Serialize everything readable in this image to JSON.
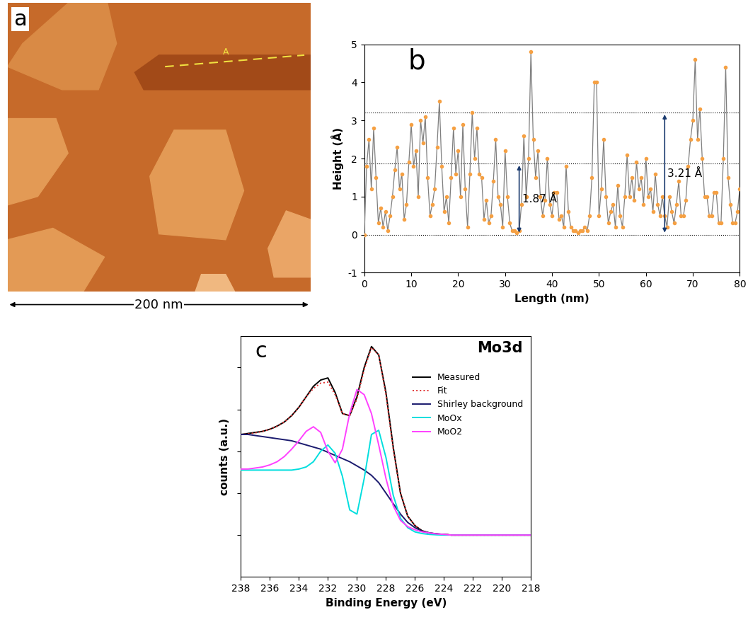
{
  "image": {
    "panel_label": "a",
    "scale_bar": "200 nm",
    "profile_label": "A"
  },
  "chart_data": [
    {
      "type": "line",
      "panel_label": "b",
      "x_label": "Length (nm)",
      "y_label": "Height (Å)",
      "x": [
        0,
        0.5,
        1,
        1.5,
        2,
        2.5,
        3,
        3.5,
        4,
        4.5,
        5,
        5.5,
        6,
        6.5,
        7,
        7.5,
        8,
        8.5,
        9,
        9.5,
        10,
        10.5,
        11,
        11.5,
        12,
        12.5,
        13,
        13.5,
        14,
        14.5,
        15,
        15.5,
        16,
        16.5,
        17,
        17.5,
        18,
        18.5,
        19,
        19.5,
        20,
        20.5,
        21,
        21.5,
        22,
        22.5,
        23,
        23.5,
        24,
        24.5,
        25,
        25.5,
        26,
        26.5,
        27,
        27.5,
        28,
        28.5,
        29,
        29.5,
        30,
        30.5,
        31,
        31.5,
        32,
        32.5,
        33,
        33.5,
        34,
        34.5,
        35,
        35.5,
        36,
        36.5,
        37,
        37.5,
        38,
        38.5,
        39,
        39.5,
        40,
        40.5,
        41,
        41.5,
        42,
        42.5,
        43,
        43.5,
        44,
        44.5,
        45,
        45.5,
        46,
        46.5,
        47,
        47.5,
        48,
        48.5,
        49,
        49.5,
        50,
        50.5,
        51,
        51.5,
        52,
        52.5,
        53,
        53.5,
        54,
        54.5,
        55,
        55.5,
        56,
        56.5,
        57,
        57.5,
        58,
        58.5,
        59,
        59.5,
        60,
        60.5,
        61,
        61.5,
        62,
        62.5,
        63,
        63.5,
        64,
        64.5,
        65,
        65.5,
        66,
        66.5,
        67,
        67.5,
        68,
        68.5,
        69,
        69.5,
        70,
        70.5,
        71,
        71.5,
        72,
        72.5,
        73,
        73.5,
        74,
        74.5,
        75,
        75.5,
        76,
        76.5,
        77,
        77.5,
        78,
        78.5,
        79,
        79.5,
        80
      ],
      "values": [
        0,
        1.8,
        2.5,
        1.2,
        2.8,
        1.5,
        0.3,
        0.7,
        0.2,
        0.6,
        0.1,
        0.5,
        1.0,
        1.7,
        2.3,
        1.2,
        1.6,
        0.4,
        0.8,
        1.9,
        2.9,
        1.8,
        2.2,
        1.0,
        3.0,
        2.4,
        3.1,
        1.5,
        0.5,
        0.8,
        1.2,
        2.3,
        3.5,
        1.8,
        0.6,
        1.0,
        0.3,
        1.5,
        2.8,
        1.6,
        2.2,
        1.0,
        2.9,
        1.2,
        0.2,
        1.6,
        3.2,
        2.0,
        2.8,
        1.6,
        1.5,
        0.4,
        0.9,
        0.3,
        0.5,
        1.4,
        2.5,
        1.0,
        0.8,
        0.2,
        2.2,
        1.0,
        0.3,
        0.1,
        0.1,
        0.05,
        0.1,
        0.8,
        2.6,
        1.0,
        2.0,
        4.8,
        2.5,
        1.5,
        2.2,
        1.0,
        0.5,
        0.9,
        2.0,
        0.8,
        0.5,
        1.1,
        1.1,
        0.4,
        0.5,
        0.2,
        1.8,
        0.6,
        0.2,
        0.1,
        0.1,
        0.05,
        0.1,
        0.1,
        0.2,
        0.1,
        0.5,
        1.5,
        4.0,
        4.0,
        0.5,
        1.2,
        2.5,
        1.0,
        0.3,
        0.6,
        0.8,
        0.2,
        1.3,
        0.5,
        0.2,
        1.0,
        2.1,
        1.0,
        1.5,
        0.9,
        1.9,
        1.2,
        1.5,
        0.8,
        2.0,
        1.0,
        1.2,
        0.6,
        1.6,
        0.8,
        0.5,
        1.0,
        0.5,
        0.2,
        1.0,
        0.6,
        0.3,
        0.8,
        1.4,
        0.5,
        0.5,
        0.9,
        1.8,
        2.5,
        3.0,
        4.6,
        2.5,
        3.3,
        2.0,
        1.0,
        1.0,
        0.5,
        0.5,
        1.1,
        1.1,
        0.3,
        0.3,
        2.0,
        4.4,
        1.5,
        0.8,
        0.3,
        0.3,
        0.6,
        1.2
      ],
      "color": "#f5a043",
      "marker": "o",
      "line_style": "solid",
      "xlim": [
        0,
        80
      ],
      "xticks": [
        0,
        10,
        20,
        30,
        40,
        50,
        60,
        70,
        80
      ],
      "ylim": [
        -1,
        5
      ],
      "yticks": [
        -1,
        0,
        1,
        2,
        3,
        4,
        5
      ],
      "reference_lines": [
        0,
        1.87,
        3.21
      ],
      "annotations": [
        {
          "text": "1.87 Å",
          "x": 33,
          "y_from": 0,
          "y_to": 1.87
        },
        {
          "text": "3.21 Å",
          "x": 64,
          "y_from": 0,
          "y_to": 3.21
        }
      ]
    },
    {
      "type": "line",
      "panel_label": "c",
      "title": "Mo3d",
      "x_label": "Binding Energy (eV)",
      "y_label": "counts (a.u.)",
      "x": [
        238,
        237.5,
        237,
        236.5,
        236,
        235.5,
        235,
        234.5,
        234,
        233.5,
        233,
        232.5,
        232,
        231.5,
        231,
        230.5,
        230,
        229.5,
        229,
        228.5,
        228,
        227.5,
        227,
        226.5,
        226,
        225.5,
        225,
        224.5,
        224,
        223.5,
        223,
        222.5,
        222,
        221.5,
        221,
        220.5,
        220,
        219.5,
        219,
        218.5,
        218
      ],
      "series": [
        {
          "name": "Measured",
          "color": "#000000",
          "line_style": "solid",
          "values": [
            68,
            68.5,
            69,
            69.5,
            70.5,
            72,
            74,
            77,
            81,
            86,
            91,
            94,
            95,
            88,
            78,
            77,
            86,
            100,
            110,
            106,
            88,
            62,
            40,
            29,
            24.5,
            22,
            21,
            20.5,
            20.3,
            20,
            20,
            20,
            20,
            20,
            20,
            20,
            20,
            20,
            20,
            20,
            20
          ]
        },
        {
          "name": "Fit",
          "color": "#e03030",
          "line_style": "dotted",
          "values": [
            68,
            68.3,
            68.8,
            69.5,
            70.5,
            72,
            74,
            77,
            81,
            86,
            90,
            92.5,
            93,
            87,
            78,
            77,
            85,
            99,
            109.5,
            106,
            87,
            61,
            40,
            29,
            24.5,
            22,
            21,
            20.5,
            20.3,
            20,
            20,
            20,
            20,
            20,
            20,
            20,
            20,
            20,
            20,
            20,
            20
          ]
        },
        {
          "name": "Shirley background",
          "color": "#1a1a6e",
          "line_style": "solid",
          "values": [
            68,
            68,
            67.5,
            67,
            66.5,
            66,
            65.5,
            65,
            64,
            63,
            62,
            61,
            59.5,
            58,
            56.5,
            55,
            53,
            51,
            48.5,
            45,
            40,
            35,
            30,
            26,
            23.5,
            21.8,
            21,
            20.6,
            20.3,
            20,
            20,
            20,
            20,
            20,
            20,
            20,
            20,
            20,
            20,
            20,
            20
          ]
        },
        {
          "name": "MoOx",
          "color": "#00dede",
          "line_style": "solid",
          "values": [
            51,
            51,
            51,
            51,
            51,
            51,
            51,
            51,
            51.5,
            52.5,
            55,
            60,
            63,
            59,
            48,
            32,
            30,
            47,
            68,
            70,
            57,
            39,
            28,
            23.5,
            21.5,
            20.7,
            20.3,
            20.1,
            20,
            20,
            20,
            20,
            20,
            20,
            20,
            20,
            20,
            20,
            20,
            20,
            20
          ]
        },
        {
          "name": "MoO2",
          "color": "#ff40ff",
          "line_style": "solid",
          "values": [
            51.5,
            51.5,
            52,
            52.5,
            53.5,
            55,
            57.5,
            61,
            65,
            69.5,
            71.7,
            69,
            60,
            54.5,
            61,
            78,
            89.5,
            87,
            78,
            63,
            47,
            34,
            27,
            24,
            22.5,
            21.5,
            21,
            20.5,
            20.3,
            20,
            20,
            20,
            20,
            20,
            20,
            20,
            20,
            20,
            20,
            20,
            20
          ]
        }
      ],
      "legend": "upper right",
      "tick_labels": "x",
      "xlim": [
        238,
        218
      ],
      "xticks": [
        238,
        236,
        234,
        232,
        230,
        228,
        226,
        224,
        222,
        220,
        218
      ],
      "ylim": [
        0,
        115
      ],
      "yticks": [
        20,
        40,
        60,
        80,
        100
      ]
    }
  ]
}
